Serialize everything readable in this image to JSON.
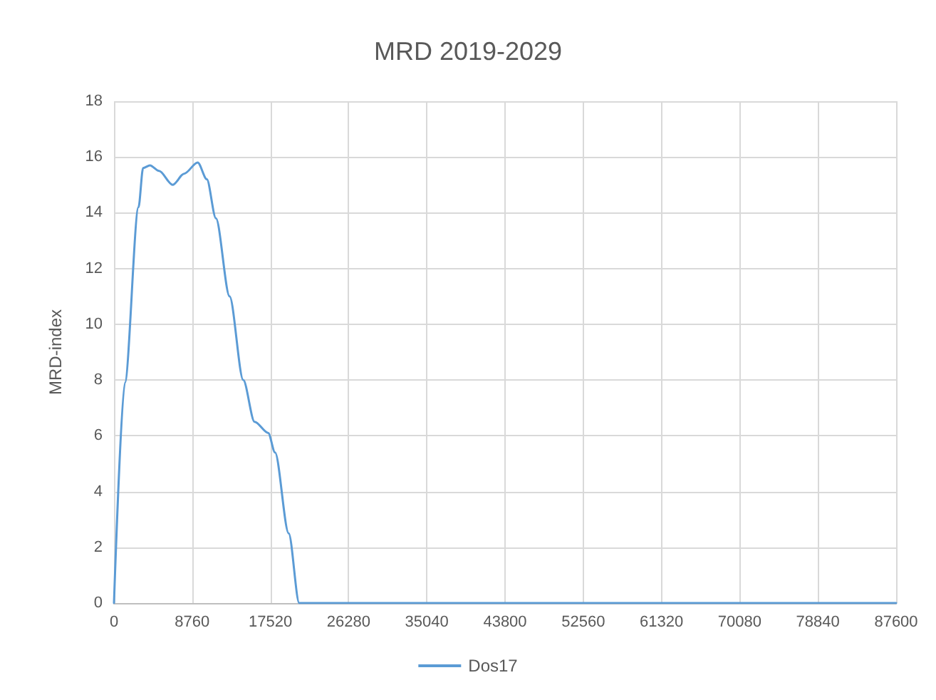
{
  "chart_data": {
    "type": "line",
    "title": "MRD 2019-2029",
    "ylabel": "MRD-index",
    "x": [
      0,
      1220,
      2750,
      3260,
      4030,
      5050,
      6580,
      7850,
      9380,
      10400,
      11420,
      12950,
      14480,
      15750,
      17280,
      18040,
      19570,
      20750,
      87600
    ],
    "series": [
      {
        "name": "Dos17",
        "color": "#5b9bd5",
        "values": [
          0,
          7.9,
          14.2,
          15.6,
          15.7,
          15.5,
          15.0,
          15.4,
          15.8,
          15.2,
          13.8,
          11.0,
          8.0,
          6.5,
          6.1,
          5.4,
          2.5,
          0,
          0
        ]
      }
    ],
    "xlim": [
      0,
      87600
    ],
    "xticks": [
      0,
      8760,
      17520,
      26280,
      35040,
      43800,
      52560,
      61320,
      70080,
      78840,
      87600
    ],
    "ylim": [
      0,
      18
    ],
    "yticks": [
      0,
      2,
      4,
      6,
      8,
      10,
      12,
      14,
      16,
      18
    ],
    "grid": true,
    "legend": "bottom",
    "marker": "none",
    "line_style": "solid"
  }
}
